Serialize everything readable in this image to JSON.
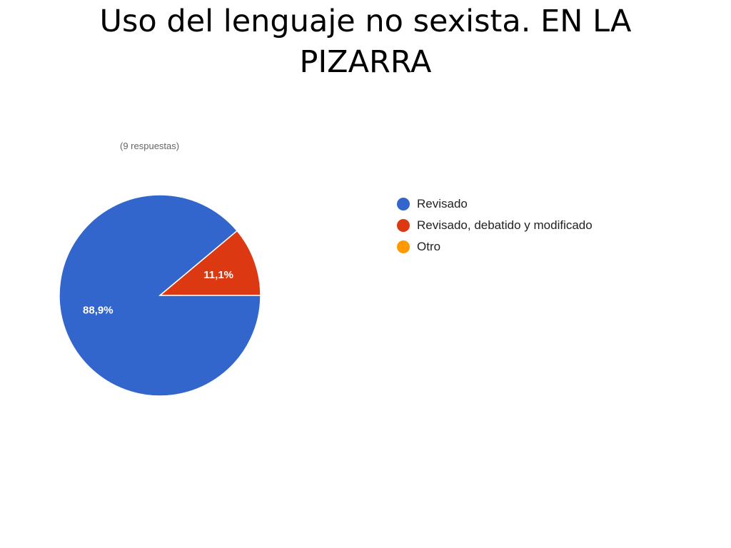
{
  "slide": {
    "title_line1": "Uso del lenguaje no sexista. EN LA",
    "title_line2": "PIZARRA"
  },
  "chart_data": {
    "type": "pie",
    "subtitle": "(9 respuestas)",
    "slices": [
      {
        "label": "Revisado",
        "value": 88.9,
        "display": "88,9%",
        "color": "#3366cc"
      },
      {
        "label": "Revisado, debatido y modificado",
        "value": 11.1,
        "display": "11,1%",
        "color": "#dc3912"
      },
      {
        "label": "Otro",
        "value": 0,
        "display": "",
        "color": "#ff9900"
      }
    ],
    "legend_position": "right"
  }
}
